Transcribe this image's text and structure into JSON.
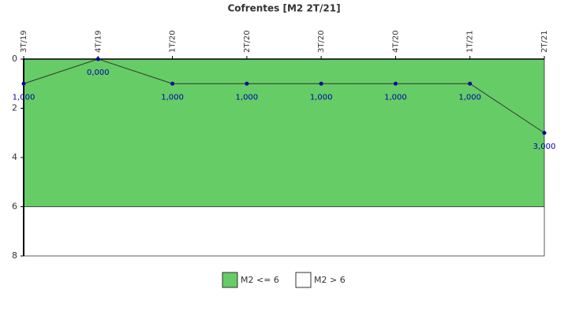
{
  "chart_data": {
    "type": "line",
    "title": "Cofrentes [M2 2T/21]",
    "categories": [
      "3T/19",
      "4T/19",
      "1T/20",
      "2T/20",
      "3T/20",
      "4T/20",
      "1T/21",
      "2T/21"
    ],
    "values": [
      1,
      0,
      1,
      1,
      1,
      1,
      1,
      3
    ],
    "value_labels": [
      "1,000",
      "0,000",
      "1,000",
      "1,000",
      "1,000",
      "1,000",
      "1,000",
      "3,000"
    ],
    "color": "#333333",
    "marker_color": "#000099",
    "ylim": [
      0,
      8
    ],
    "yticks": [
      0,
      2,
      4,
      6,
      8
    ],
    "y_reversed": true,
    "bands": [
      {
        "name": "M2 <= 6",
        "color": "#66cc66",
        "from": 0,
        "to": 6
      },
      {
        "name": "M2 > 6",
        "color": "#ffffff",
        "from": 6,
        "to": 8
      }
    ]
  }
}
